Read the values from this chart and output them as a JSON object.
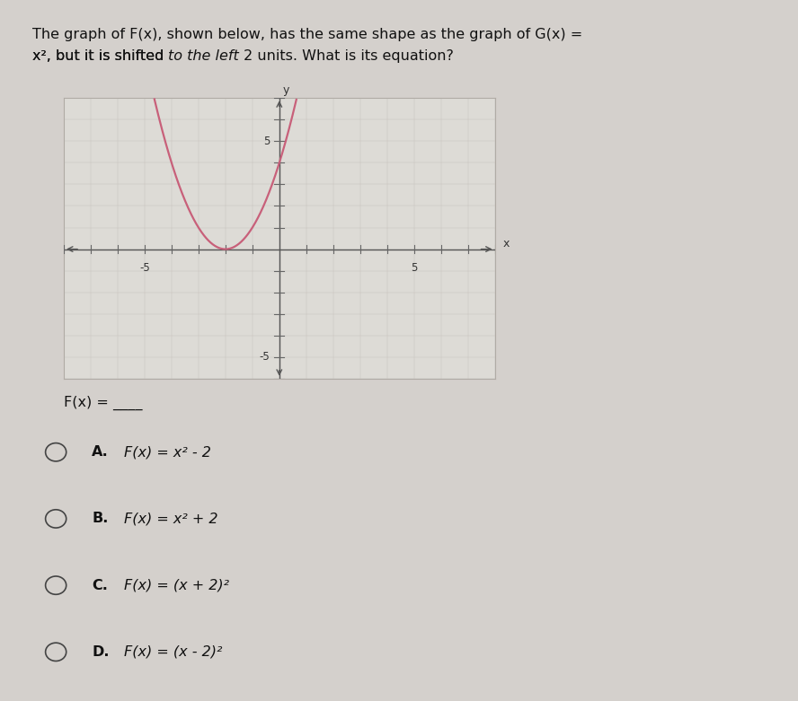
{
  "title_line1": "The graph of F(x), shown below, has the same shape as the graph of G(x) =",
  "title_line2_pre": "x², but it is shifted ",
  "title_line2_italic": "to the left",
  "title_line2_post": " 2 units. What is its equation?",
  "fx_label_pre": "F(x) = ",
  "fx_underline": "____",
  "options": [
    {
      "letter": "A.",
      "text": "F(x) = x² - 2"
    },
    {
      "letter": "B.",
      "text": "F(x) = x² + 2"
    },
    {
      "letter": "C.",
      "text": "F(x) = (x + 2)²"
    },
    {
      "letter": "D.",
      "text": "F(x) = (x - 2)²"
    }
  ],
  "curve_color": "#c8607a",
  "axis_color": "#555555",
  "tick_color": "#666666",
  "bg_color": "#d4d0cc",
  "plot_bg_color": "#dddbd6",
  "border_color": "#b0aba5",
  "xmin": -8,
  "xmax": 8,
  "ymin": -6,
  "ymax": 7,
  "x_label": "x",
  "y_label": "y",
  "x_label_shown": [
    -5,
    5
  ],
  "y_label_shown": [
    5,
    -5
  ]
}
